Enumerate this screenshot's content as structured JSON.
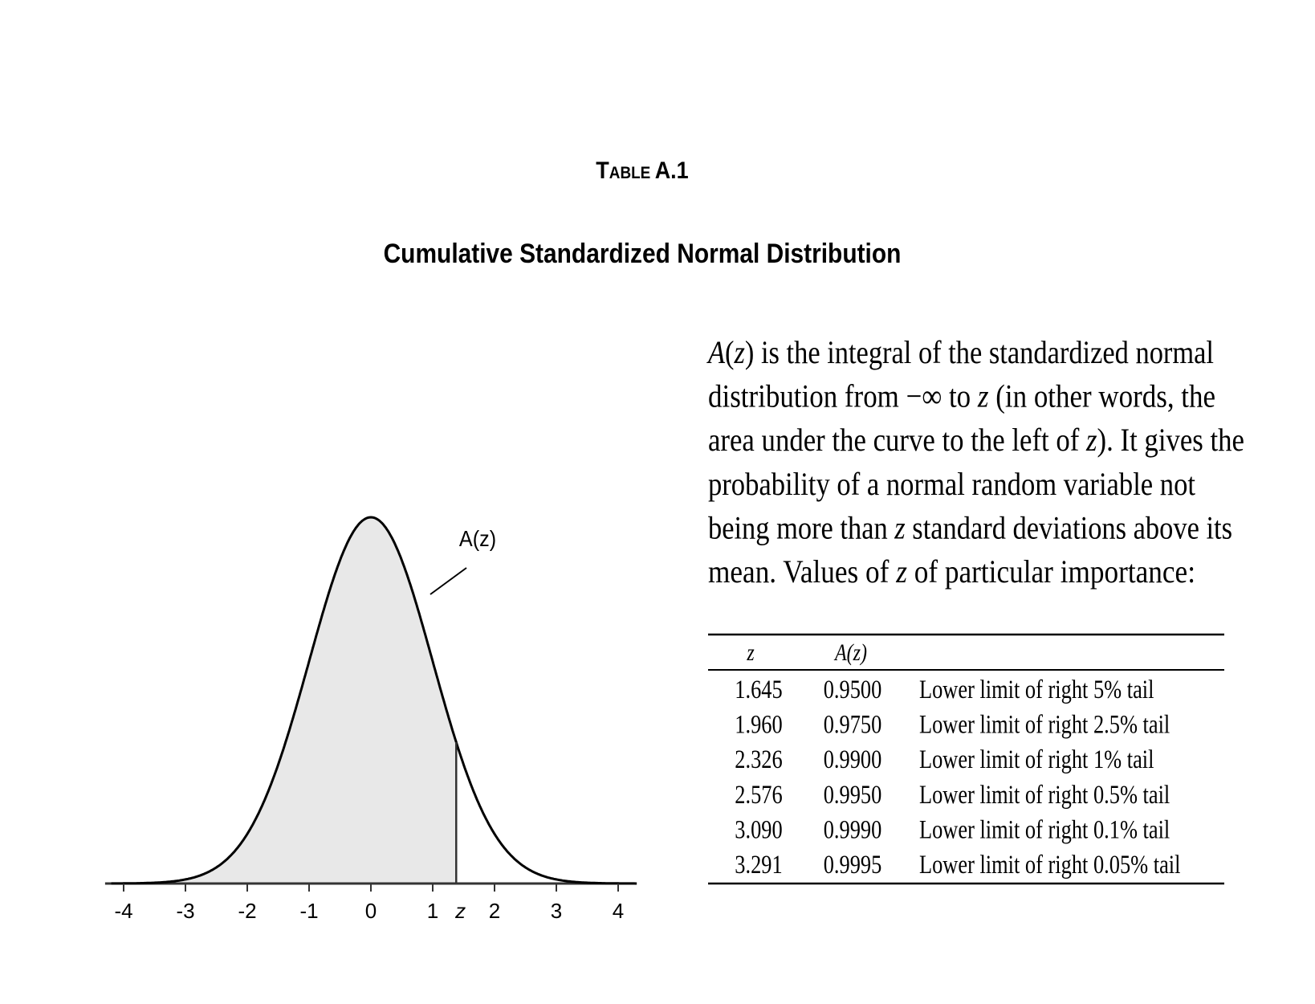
{
  "header": {
    "title_small_caps": "Table",
    "title_rest": "A.1",
    "subtitle": "Cumulative Standardized Normal Distribution"
  },
  "figure": {
    "label": "A(z)",
    "axis_labels": [
      "-4",
      "-3",
      "-2",
      "-1",
      "0",
      "1",
      "z",
      "2",
      "3",
      "4"
    ]
  },
  "paragraph": [
    [
      {
        "italic": "A"
      },
      "(",
      {
        "italic": "z"
      },
      ") is the integral of the standardized normal"
    ],
    [
      "distribution from  −∞ to ",
      {
        "italic": "z"
      },
      " (in other words, the"
    ],
    [
      "area under the curve to the left of ",
      {
        "italic": "z"
      },
      ").  It gives the"
    ],
    [
      "probability of a normal random variable not"
    ],
    [
      "being more than ",
      {
        "italic": "z"
      },
      " standard deviations above its"
    ],
    [
      "mean.  Values of ",
      {
        "italic": "z"
      },
      " of particular importance:"
    ]
  ],
  "table": {
    "header": [
      "z",
      "A(z)"
    ],
    "rows": [
      [
        "1.645",
        "0.9500",
        "Lower limit of right 5% tail"
      ],
      [
        "1.960",
        "0.9750",
        "Lower limit of right 2.5% tail"
      ],
      [
        "2.326",
        "0.9900",
        "Lower limit of right 1% tail"
      ],
      [
        "2.576",
        "0.9950",
        "Lower limit of right 0.5% tail"
      ],
      [
        "3.090",
        "0.9990",
        "Lower limit of right 0.1% tail"
      ],
      [
        "3.291",
        "0.9995",
        "Lower limit of right 0.05% tail"
      ]
    ]
  }
}
